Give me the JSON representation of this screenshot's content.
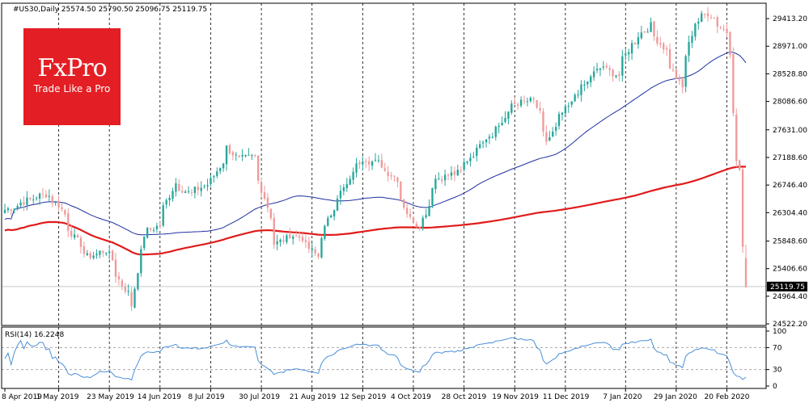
{
  "header": {
    "symbol_info": "#US30,Daily  25574.50 25790.50 25096.75 25119.75"
  },
  "logo": {
    "brand": "FxPro",
    "tagline": "Trade Like a Pro"
  },
  "rsi_panel": {
    "label": "RSI(14) 16.2248",
    "ticks": [
      "100",
      "70",
      "30",
      "0"
    ]
  },
  "colors": {
    "bull": "#26a69a",
    "bear": "#ef9a9a",
    "ma_fast": "#1f2ea0",
    "ma_slow": "#e01b1b",
    "rsi": "#4a90d9"
  },
  "chart_data": [
    {
      "type": "candlestick",
      "title": "#US30,Daily",
      "ohlc_last": {
        "open": 25574.5,
        "high": 25790.5,
        "low": 25096.75,
        "close": 25119.75
      },
      "y_ticks": [
        "29413.20",
        "28971.00",
        "28528.80",
        "28086.60",
        "27631.00",
        "27188.60",
        "26746.40",
        "26304.40",
        "25848.60",
        "25406.60",
        "24964.40",
        "24522.20"
      ],
      "current_price_label": "25119.75",
      "ylim": [
        24522.2,
        29660
      ],
      "x_tick_labels": [
        "8 Apr 2019",
        "1 May 2019",
        "23 May 2019",
        "14 Jun 2019",
        "8 Jul 2019",
        "30 Jul 2019",
        "21 Aug 2019",
        "12 Sep 2019",
        "4 Oct 2019",
        "28 Oct 2019",
        "19 Nov 2019",
        "11 Dec 2019",
        "7 Jan 2020",
        "29 Jan 2020",
        "20 Feb 2020"
      ],
      "close_anchors": [
        [
          "2019-04-08",
          26350
        ],
        [
          "2019-04-17",
          26500
        ],
        [
          "2019-04-25",
          26600
        ],
        [
          "2019-05-01",
          26430
        ],
        [
          "2019-05-08",
          25900
        ],
        [
          "2019-05-14",
          25600
        ],
        [
          "2019-05-22",
          25700
        ],
        [
          "2019-05-29",
          25150
        ],
        [
          "2019-06-03",
          24820
        ],
        [
          "2019-06-07",
          25950
        ],
        [
          "2019-06-14",
          26100
        ],
        [
          "2019-06-21",
          26780
        ],
        [
          "2019-06-28",
          26600
        ],
        [
          "2019-07-08",
          26820
        ],
        [
          "2019-07-15",
          27350
        ],
        [
          "2019-07-19",
          27150
        ],
        [
          "2019-07-26",
          27200
        ],
        [
          "2019-07-31",
          26550
        ],
        [
          "2019-08-05",
          25800
        ],
        [
          "2019-08-12",
          25950
        ],
        [
          "2019-08-16",
          25900
        ],
        [
          "2019-08-23",
          25600
        ],
        [
          "2019-08-30",
          26400
        ],
        [
          "2019-09-06",
          26800
        ],
        [
          "2019-09-12",
          27180
        ],
        [
          "2019-09-19",
          27100
        ],
        [
          "2019-09-27",
          26850
        ],
        [
          "2019-10-03",
          26200
        ],
        [
          "2019-10-08",
          26100
        ],
        [
          "2019-10-15",
          26850
        ],
        [
          "2019-10-25",
          26950
        ],
        [
          "2019-11-04",
          27450
        ],
        [
          "2019-11-12",
          27700
        ],
        [
          "2019-11-18",
          28050
        ],
        [
          "2019-11-27",
          28100
        ],
        [
          "2019-12-03",
          27450
        ],
        [
          "2019-12-10",
          27900
        ],
        [
          "2019-12-19",
          28350
        ],
        [
          "2019-12-27",
          28650
        ],
        [
          "2020-01-03",
          28500
        ],
        [
          "2020-01-09",
          29000
        ],
        [
          "2020-01-17",
          29300
        ],
        [
          "2020-01-24",
          28900
        ],
        [
          "2020-01-31",
          28300
        ],
        [
          "2020-02-06",
          29350
        ],
        [
          "2020-02-12",
          29500
        ],
        [
          "2020-02-20",
          29200
        ],
        [
          "2020-02-24",
          27950
        ],
        [
          "2020-02-25",
          27100
        ],
        [
          "2020-02-26",
          27000
        ],
        [
          "2020-02-27",
          25750
        ],
        [
          "2020-02-28",
          25120
        ]
      ],
      "series": [
        {
          "name": "MA fast",
          "type": "line"
        },
        {
          "name": "MA slow",
          "type": "line"
        }
      ]
    },
    {
      "type": "line",
      "title": "RSI(14) 16.2248",
      "ylim": [
        0,
        100
      ],
      "y_ticks": [
        100,
        70,
        30,
        0
      ],
      "last_value": 16.2248
    }
  ]
}
